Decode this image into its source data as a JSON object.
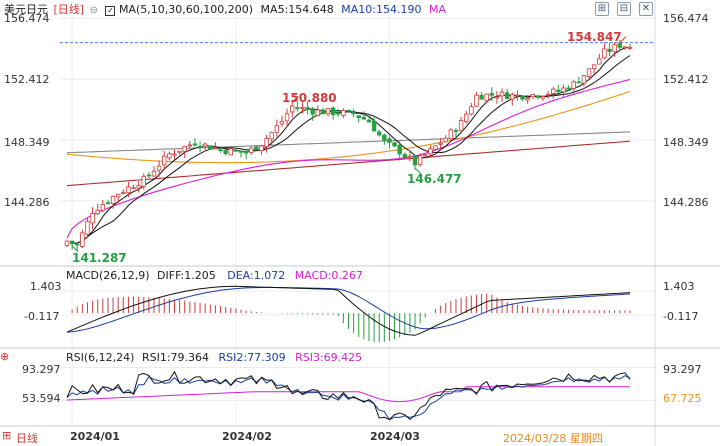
{
  "header": {
    "symbol": "美元日元",
    "period": "[日线]",
    "ma_params": "MA(5,10,30,60,100,200)",
    "ma5": "MA5:154.648",
    "ma10": "MA10:154.190",
    "ma_more": "MA"
  },
  "macd_header": {
    "params": "MACD(26,12,9)",
    "diff": "DIFF:1.205",
    "dea": "DEA:1.072",
    "macd": "MACD:0.267"
  },
  "rsi_header": {
    "params": "RSI(6,12,24)",
    "rsi1": "RSI1:79.364",
    "rsi2": "RSI2:77.309",
    "rsi3": "RSI3:69.425"
  },
  "footer": {
    "period_tab": "日线",
    "dates": [
      "2024/01",
      "2024/02",
      "2024/03"
    ],
    "current_date": "2024/03/28 星期四"
  },
  "colors": {
    "up": "#d23a3a",
    "down": "#26a043",
    "ma5": "#111111",
    "ma10": "#111111",
    "ma30": "#d61fd6",
    "ma60": "#e8961a",
    "ma100": "#888888",
    "ma200": "#a83232",
    "price_line": "#1e6fd9"
  },
  "chart_data": [
    {
      "type": "candlestick",
      "name": "price",
      "yticks": [
        156.474,
        152.412,
        148.349,
        144.286
      ],
      "ylim": [
        140.2,
        156.9
      ],
      "annotations": [
        {
          "label": "150.880",
          "index": 44,
          "value": 150.88,
          "color": "#d23a3a"
        },
        {
          "label": "146.477",
          "index": 68,
          "value": 146.477,
          "color": "#26a043"
        },
        {
          "label": "154.847",
          "index": 108,
          "value": 154.847,
          "color": "#d23a3a"
        },
        {
          "label": "141.287",
          "index": 1,
          "value": 141.287,
          "color": "#26a043"
        }
      ],
      "current_price": 154.85,
      "x_labels": [
        {
          "label": "2024/01",
          "index": 1
        },
        {
          "label": "2024/02",
          "index": 33
        },
        {
          "label": "2024/03",
          "index": 63
        }
      ]
    },
    {
      "type": "macd",
      "name": "MACD",
      "yticks": [
        1.403,
        -0.117
      ],
      "ylim": [
        -1.7,
        2.1
      ]
    },
    {
      "type": "rsi",
      "name": "RSI",
      "yticks": [
        93.297,
        53.594
      ],
      "right_ticks": [
        93.297,
        67.725
      ],
      "ylim": [
        25,
        100
      ]
    }
  ]
}
